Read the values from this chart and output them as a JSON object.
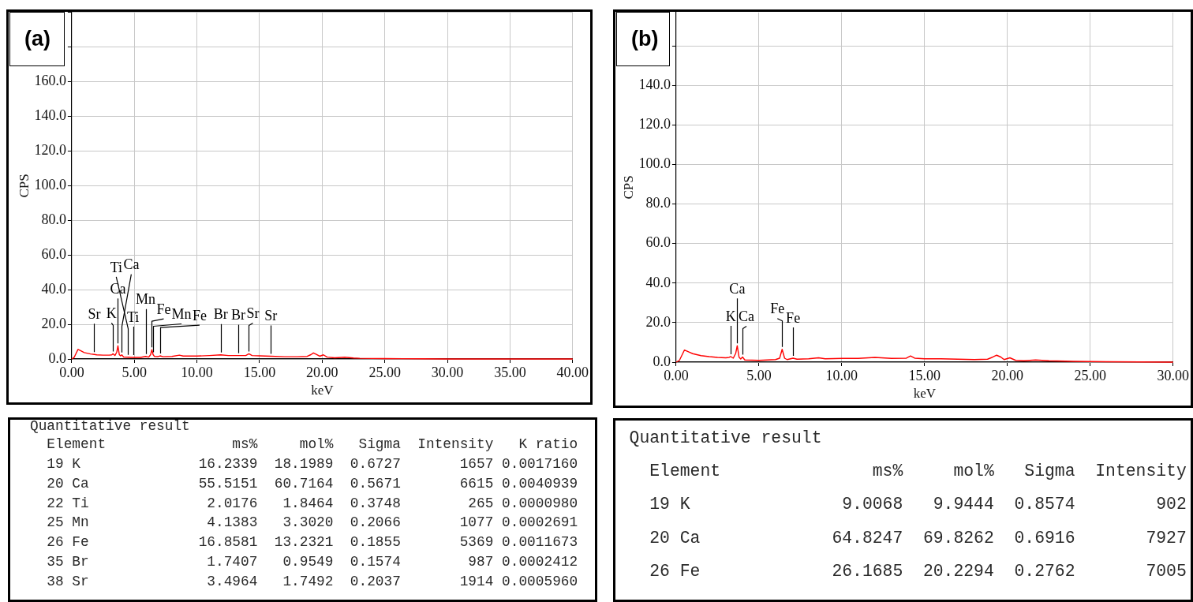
{
  "chart_data": [
    {
      "type": "line",
      "title": "(a)",
      "xlabel": "keV",
      "ylabel": "CPS",
      "color": "#ff0000",
      "x": [
        0,
        0.2,
        0.5,
        0.7,
        1.0,
        1.5,
        1.8,
        2.0,
        2.5,
        3.0,
        3.2,
        3.3,
        3.45,
        3.6,
        3.69,
        3.8,
        3.9,
        4.0,
        4.15,
        4.5,
        4.9,
        5.0,
        5.5,
        5.9,
        6.15,
        6.3,
        6.4,
        6.5,
        6.6,
        6.9,
        7.06,
        7.3,
        8.0,
        8.6,
        8.9,
        10,
        11,
        11.9,
        12.5,
        13.3,
        13.9,
        14.15,
        14.4,
        15,
        15.9,
        17,
        18,
        18.8,
        19.1,
        19.3,
        19.5,
        19.8,
        20.1,
        20.4,
        21,
        21.8,
        22.5,
        23,
        25,
        28,
        30,
        40
      ],
      "values": [
        0,
        1,
        5.5,
        4.8,
        3.7,
        2.9,
        2.6,
        2.4,
        2.2,
        2.2,
        2.4,
        3,
        2,
        4,
        7.6,
        2.5,
        1.8,
        2.4,
        1.1,
        1,
        0.9,
        0.9,
        0.9,
        1.5,
        1.1,
        2.5,
        5.4,
        2.5,
        1.5,
        1.4,
        1.8,
        1.3,
        1.5,
        2.2,
        1.7,
        1.7,
        2,
        2.4,
        2,
        2,
        2,
        3,
        2,
        1.8,
        1.6,
        1.3,
        1.3,
        1.5,
        2.5,
        3.5,
        2.8,
        1.6,
        2.4,
        1.1,
        0.7,
        1,
        0.6,
        0.4,
        0.2,
        0.1,
        0,
        0
      ],
      "xlim": [
        0,
        40
      ],
      "xticks": [
        {
          "value": 0,
          "label": "0.00"
        },
        {
          "value": 5,
          "label": "5.00"
        },
        {
          "value": 10,
          "label": "10.00"
        },
        {
          "value": 15,
          "label": "15.00"
        },
        {
          "value": 20,
          "label": "20.00"
        },
        {
          "value": 25,
          "label": "25.00"
        },
        {
          "value": 30,
          "label": "30.00"
        },
        {
          "value": 35,
          "label": "35.00"
        },
        {
          "value": 40,
          "label": "40.00"
        }
      ],
      "ylim": [
        0,
        200
      ],
      "yticks": [
        {
          "value": 0,
          "label": "0.0"
        },
        {
          "value": 20,
          "label": "20.0"
        },
        {
          "value": 40,
          "label": "40.0"
        },
        {
          "value": 60,
          "label": "60.0"
        },
        {
          "value": 80,
          "label": "80.0"
        },
        {
          "value": 100,
          "label": "100.0"
        },
        {
          "value": 120,
          "label": "120.0"
        },
        {
          "value": 140,
          "label": "140.0"
        },
        {
          "value": 160,
          "label": "160.0"
        },
        {
          "value": 180,
          "label": null
        },
        {
          "value": 200,
          "label": null
        }
      ],
      "grid": true,
      "annotations": [
        {
          "text": "Sr",
          "x": 1.8,
          "y": 2.6
        },
        {
          "text": "K",
          "x": 3.3,
          "y": 3
        },
        {
          "text": "Ca",
          "x": 3.69,
          "y": 7.6
        },
        {
          "text": "Ca",
          "x": 4.0,
          "y": 2.4
        },
        {
          "text": "Ti",
          "x": 4.5,
          "y": 1
        },
        {
          "text": "Ti",
          "x": 4.9,
          "y": 0.9
        },
        {
          "text": "Mn",
          "x": 5.9,
          "y": 1.5
        },
        {
          "text": "Fe",
          "x": 6.4,
          "y": 5.4
        },
        {
          "text": "Mn",
          "x": 6.5,
          "y": 2.5
        },
        {
          "text": "Fe",
          "x": 7.06,
          "y": 1.8
        },
        {
          "text": "Br",
          "x": 11.9,
          "y": 2.4
        },
        {
          "text": "Br",
          "x": 13.3,
          "y": 2
        },
        {
          "text": "Sr",
          "x": 14.15,
          "y": 3
        },
        {
          "text": "Sr",
          "x": 15.9,
          "y": 1.6
        }
      ]
    },
    {
      "type": "line",
      "title": "(b)",
      "xlabel": "keV",
      "ylabel": "CPS",
      "color": "#ff0000",
      "x": [
        0,
        0.2,
        0.5,
        0.8,
        1.0,
        1.5,
        2.0,
        2.5,
        3.0,
        3.2,
        3.3,
        3.45,
        3.6,
        3.69,
        3.8,
        3.9,
        4.01,
        4.15,
        5.0,
        6.0,
        6.25,
        6.4,
        6.55,
        6.7,
        7.06,
        7.3,
        8.0,
        8.6,
        9.0,
        10,
        11,
        12,
        13,
        13.9,
        14.15,
        14.4,
        15,
        16,
        17,
        18,
        18.8,
        19.1,
        19.35,
        19.6,
        19.8,
        20.15,
        20.5,
        21,
        21.7,
        22.5,
        24,
        26,
        30
      ],
      "values": [
        0,
        0.9,
        6.1,
        5,
        4.3,
        3.3,
        2.8,
        2.4,
        2.2,
        2.4,
        2.8,
        2,
        4.5,
        8.3,
        2.5,
        1.6,
        2.6,
        1.1,
        0.9,
        1.3,
        2,
        6.5,
        2,
        1.3,
        2,
        1.5,
        1.7,
        2.2,
        1.7,
        1.9,
        1.9,
        2.4,
        1.9,
        2,
        3.1,
        2,
        1.7,
        1.7,
        1.5,
        1.3,
        1.5,
        2.5,
        3.5,
        2.6,
        1.3,
        2.2,
        0.9,
        0.7,
        1.1,
        0.7,
        0.4,
        0.2,
        0
      ],
      "xlim": [
        0,
        30
      ],
      "xticks": [
        {
          "value": 0,
          "label": "0.00"
        },
        {
          "value": 5,
          "label": "5.00"
        },
        {
          "value": 10,
          "label": "10.00"
        },
        {
          "value": 15,
          "label": "15.00"
        },
        {
          "value": 20,
          "label": "20.00"
        },
        {
          "value": 25,
          "label": "25.00"
        },
        {
          "value": 30,
          "label": "30.00"
        }
      ],
      "ylim": [
        0,
        177
      ],
      "yticks": [
        {
          "value": 0,
          "label": "0.0"
        },
        {
          "value": 20,
          "label": "20.0"
        },
        {
          "value": 40,
          "label": "40.0"
        },
        {
          "value": 60,
          "label": "60.0"
        },
        {
          "value": 80,
          "label": "80.0"
        },
        {
          "value": 100,
          "label": "100.0"
        },
        {
          "value": 120,
          "label": "120.0"
        },
        {
          "value": 140,
          "label": "140.0"
        },
        {
          "value": 160,
          "label": null
        }
      ],
      "grid": true,
      "annotations": [
        {
          "text": "K",
          "x": 3.3,
          "y": 2.8
        },
        {
          "text": "Ca",
          "x": 3.69,
          "y": 8.3
        },
        {
          "text": "Ca",
          "x": 4.01,
          "y": 2.6
        },
        {
          "text": "Fe",
          "x": 6.4,
          "y": 6.5
        },
        {
          "text": "Fe",
          "x": 7.06,
          "y": 2
        }
      ]
    },
    {
      "type": "other",
      "title": "Quantitative result",
      "ylabel": "Element",
      "categories": [
        "ms%",
        "mol%",
        "Sigma",
        "Intensity",
        "K ratio"
      ],
      "y_categories": [
        "19 K",
        "20 Ca",
        "22 Ti",
        "25 Mn",
        "26 Fe",
        "35 Br",
        "38 Sr"
      ],
      "cell_labels": [
        [
          "16.2339",
          "18.1989",
          "0.6727",
          "1657",
          "0.0017160"
        ],
        [
          "55.5151",
          "60.7164",
          "0.5671",
          "6615",
          "0.0040939"
        ],
        [
          "2.0176",
          "1.8464",
          "0.3748",
          "265",
          "0.0000980"
        ],
        [
          "4.1383",
          "3.3020",
          "0.2066",
          "1077",
          "0.0002691"
        ],
        [
          "16.8581",
          "13.2321",
          "0.1855",
          "5369",
          "0.0011673"
        ],
        [
          "1.7407",
          "0.9549",
          "0.1574",
          "987",
          "0.0002412"
        ],
        [
          "3.4964",
          "1.7492",
          "0.2037",
          "1914",
          "0.0005960"
        ]
      ]
    },
    {
      "type": "other",
      "title": "Quantitative result",
      "ylabel": "Element",
      "categories": [
        "ms%",
        "mol%",
        "Sigma",
        "Intensity"
      ],
      "y_categories": [
        "19 K",
        "20 Ca",
        "26 Fe"
      ],
      "cell_labels": [
        [
          "9.0068",
          "9.9444",
          "0.8574",
          "902"
        ],
        [
          "64.8247",
          "69.8262",
          "0.6916",
          "7927"
        ],
        [
          "26.1685",
          "20.2294",
          "0.2762",
          "7005"
        ]
      ]
    }
  ]
}
